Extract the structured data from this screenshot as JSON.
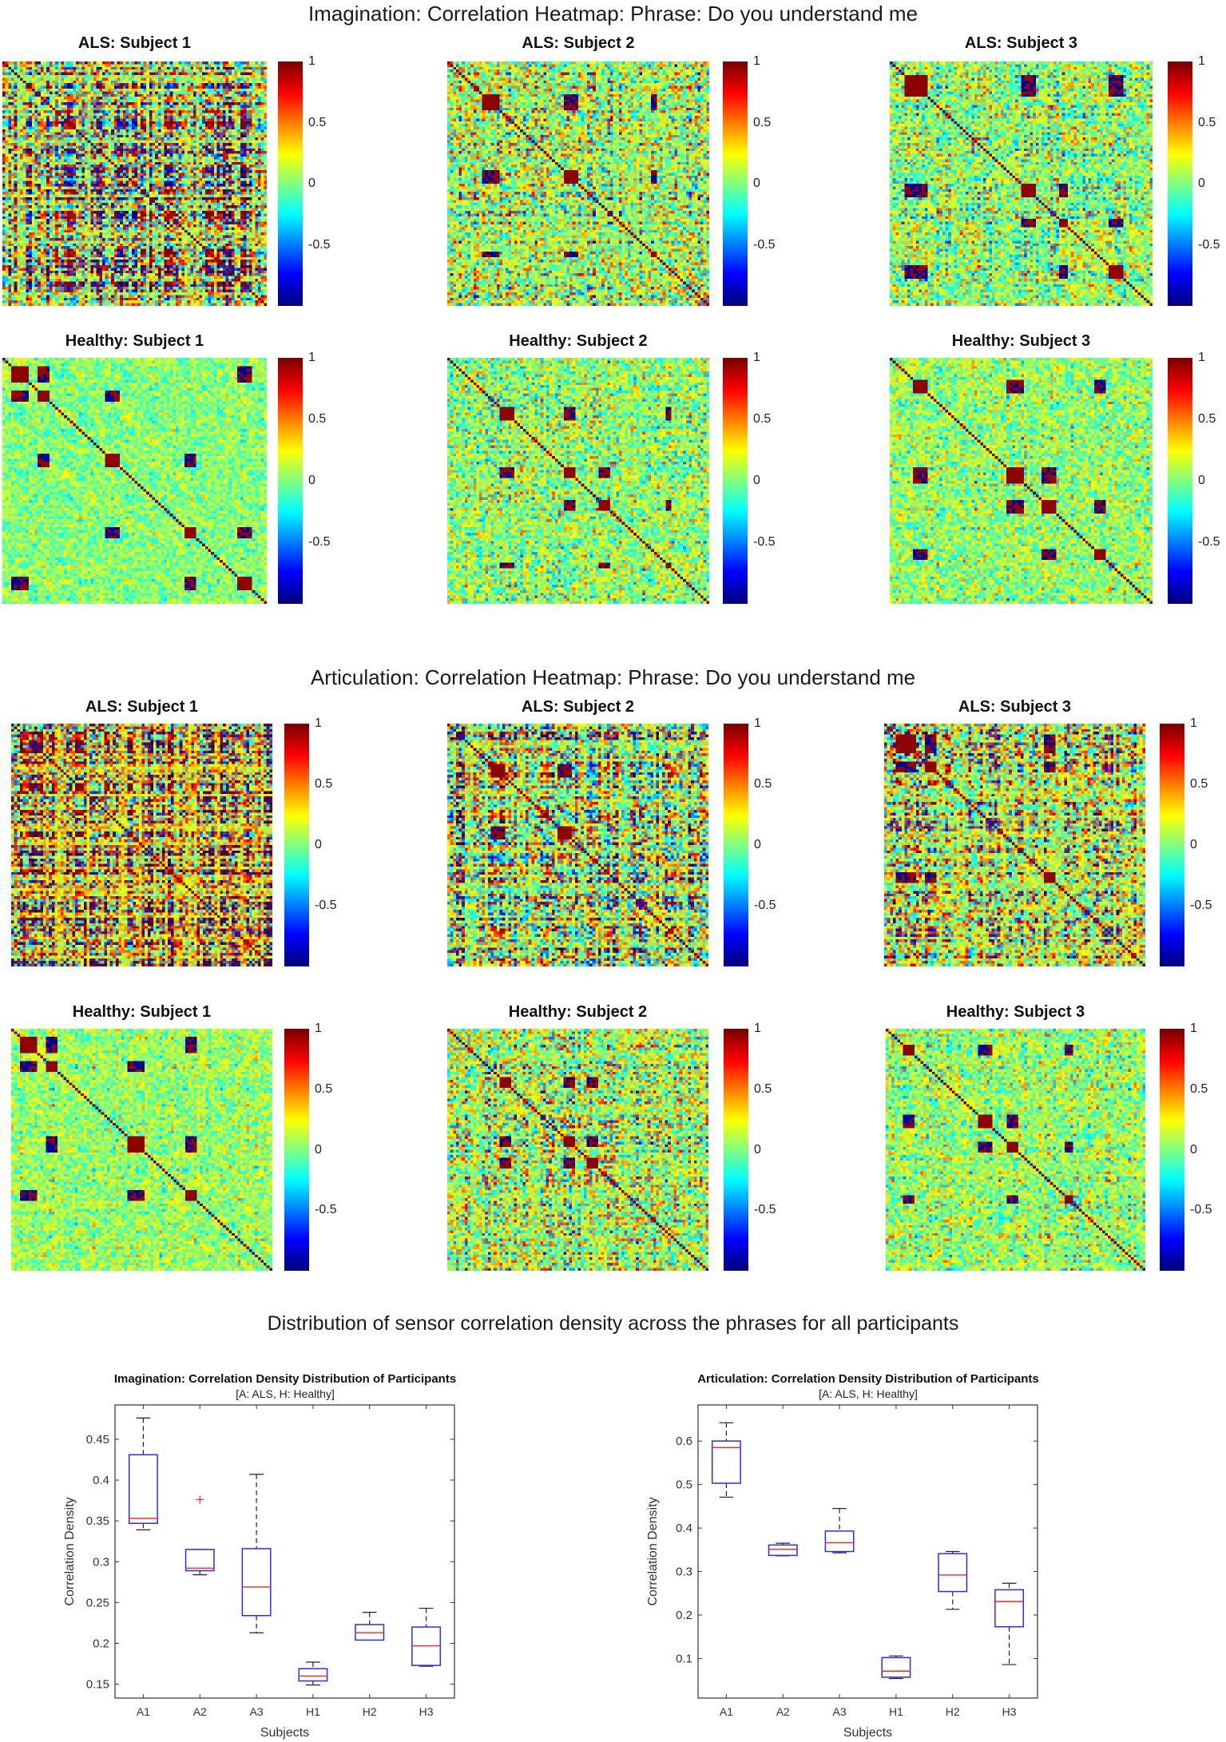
{
  "sections": [
    {
      "title": "Imagination: Correlation Heatmap: Phrase: Do you understand me",
      "panels": [
        "ALS: Subject 1",
        "ALS: Subject 2",
        "ALS: Subject 3",
        "Healthy: Subject 1",
        "Healthy: Subject 2",
        "Healthy: Subject 3"
      ]
    },
    {
      "title": "Articulation: Correlation Heatmap: Phrase: Do you understand me",
      "panels": [
        "ALS: Subject 1",
        "ALS: Subject 2",
        "ALS: Subject 3",
        "Healthy: Subject 1",
        "Healthy: Subject 2",
        "Healthy: Subject 3"
      ]
    }
  ],
  "colorbar": {
    "ticks": [
      "1",
      "0.5",
      "0",
      "-0.5"
    ],
    "tick_values": [
      1,
      0.5,
      0,
      -0.5
    ],
    "clim": [
      -1,
      1
    ],
    "colormap": "jet"
  },
  "boxplot_section_title": "Distribution of sensor correlation density across the phrases for all participants",
  "chart_data": [
    {
      "type": "box",
      "title": "Imagination: Correlation Density Distribution of Participants",
      "subtitle": "[A: ALS, H: Healthy]",
      "xlabel": "Subjects",
      "ylabel": "Correlation Density",
      "ylim": [
        0.133,
        0.492
      ],
      "yticks": [
        0.15,
        0.2,
        0.25,
        0.3,
        0.35,
        0.4,
        0.45
      ],
      "ytick_labels": [
        "0.15",
        "0.2",
        "0.25",
        "0.3",
        "0.35",
        "0.4",
        "0.45"
      ],
      "categories": [
        "A1",
        "A2",
        "A3",
        "H1",
        "H2",
        "H3"
      ],
      "boxes": [
        {
          "min": 0.339,
          "q1": 0.347,
          "median": 0.353,
          "q3": 0.431,
          "max": 0.476,
          "outliers": []
        },
        {
          "min": 0.284,
          "q1": 0.289,
          "median": 0.292,
          "q3": 0.315,
          "max": 0.315,
          "outliers": [
            0.376
          ]
        },
        {
          "min": 0.213,
          "q1": 0.234,
          "median": 0.269,
          "q3": 0.316,
          "max": 0.407,
          "outliers": []
        },
        {
          "min": 0.149,
          "q1": 0.154,
          "median": 0.16,
          "q3": 0.169,
          "max": 0.177,
          "outliers": []
        },
        {
          "min": 0.204,
          "q1": 0.204,
          "median": 0.213,
          "q3": 0.223,
          "max": 0.238,
          "outliers": []
        },
        {
          "min": 0.172,
          "q1": 0.173,
          "median": 0.197,
          "q3": 0.22,
          "max": 0.243,
          "outliers": []
        }
      ]
    },
    {
      "type": "box",
      "title": "Articulation: Correlation Density Distribution of Participants",
      "subtitle": "[A: ALS, H: Healthy]",
      "xlabel": "Subjects",
      "ylabel": "Correlation Density",
      "ylim": [
        0.009,
        0.683
      ],
      "yticks": [
        0.1,
        0.2,
        0.3,
        0.4,
        0.5,
        0.6
      ],
      "ytick_labels": [
        "0.1",
        "0.2",
        "0.3",
        "0.4",
        "0.5",
        "0.6"
      ],
      "categories": [
        "A1",
        "A2",
        "A3",
        "H1",
        "H2",
        "H3"
      ],
      "boxes": [
        {
          "min": 0.471,
          "q1": 0.503,
          "median": 0.585,
          "q3": 0.6,
          "max": 0.642,
          "outliers": []
        },
        {
          "min": 0.336,
          "q1": 0.337,
          "median": 0.351,
          "q3": 0.361,
          "max": 0.365,
          "outliers": []
        },
        {
          "min": 0.343,
          "q1": 0.346,
          "median": 0.366,
          "q3": 0.393,
          "max": 0.445,
          "outliers": []
        },
        {
          "min": 0.054,
          "q1": 0.057,
          "median": 0.071,
          "q3": 0.102,
          "max": 0.106,
          "outliers": []
        },
        {
          "min": 0.213,
          "q1": 0.254,
          "median": 0.292,
          "q3": 0.341,
          "max": 0.346,
          "outliers": []
        },
        {
          "min": 0.086,
          "q1": 0.173,
          "median": 0.231,
          "q3": 0.258,
          "max": 0.273,
          "outliers": []
        }
      ]
    }
  ]
}
